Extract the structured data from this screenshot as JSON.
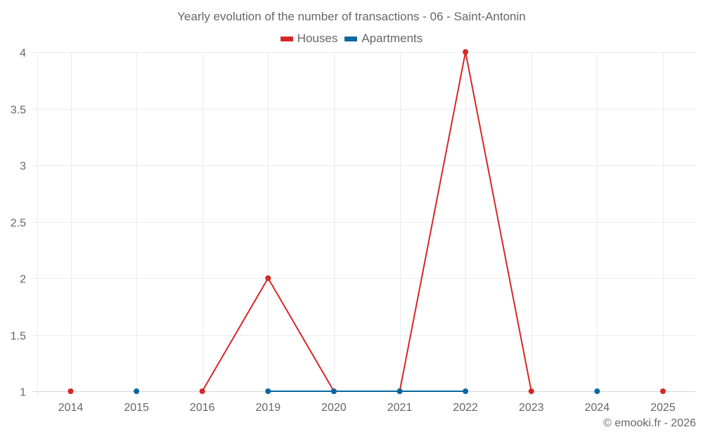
{
  "chart_data": {
    "type": "line",
    "title": "Yearly evolution of the number of transactions - 06 - Saint-Antonin",
    "xlabel": "",
    "ylabel": "",
    "categories": [
      "2014",
      "2015",
      "2016",
      "2019",
      "2020",
      "2021",
      "2022",
      "2023",
      "2024",
      "2025"
    ],
    "series": [
      {
        "name": "Houses",
        "color": "#d62728",
        "values": [
          1,
          null,
          1,
          2,
          1,
          1,
          4,
          1,
          null,
          1
        ]
      },
      {
        "name": "Apartments",
        "color": "#0a68a0",
        "values": [
          null,
          1,
          null,
          1,
          1,
          1,
          1,
          null,
          1,
          null
        ]
      }
    ],
    "yticks": [
      "1",
      "1.5",
      "2",
      "2.5",
      "3",
      "3.5",
      "4"
    ],
    "ylim": [
      1,
      4
    ],
    "grid": true,
    "legend_position": "top"
  },
  "title": "Yearly evolution of the number of transactions - 06 - Saint-Antonin",
  "legend": [
    {
      "label": "Houses",
      "color": "#d62728"
    },
    {
      "label": "Apartments",
      "color": "#0a68a0"
    }
  ],
  "credit": "© emooki.fr - 2026"
}
